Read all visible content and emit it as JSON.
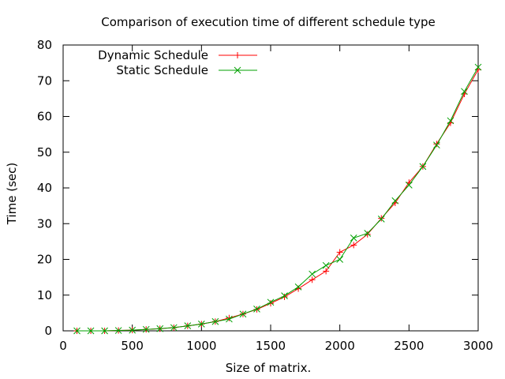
{
  "chart_data": {
    "type": "line",
    "title": "Comparison of execution time of different schedule type",
    "xlabel": "Size of matrix.",
    "ylabel": "Time (sec)",
    "xlim": [
      0,
      3000
    ],
    "ylim": [
      0,
      80
    ],
    "xticks": [
      0,
      500,
      1000,
      1500,
      2000,
      2500,
      3000
    ],
    "yticks": [
      0,
      10,
      20,
      30,
      40,
      50,
      60,
      70,
      80
    ],
    "grid": false,
    "legend_position": "top-left",
    "x": [
      100,
      200,
      300,
      400,
      500,
      600,
      700,
      800,
      900,
      1000,
      1100,
      1200,
      1300,
      1400,
      1500,
      1600,
      1700,
      1800,
      1900,
      2000,
      2100,
      2200,
      2300,
      2400,
      2500,
      2600,
      2700,
      2800,
      2900,
      3000
    ],
    "series": [
      {
        "name": "Dynamic Schedule",
        "color": "#ff0000",
        "marker": "plus",
        "values": [
          0.0,
          0.0,
          0.0,
          0.1,
          0.2,
          0.4,
          0.6,
          0.9,
          1.4,
          1.9,
          2.6,
          3.6,
          4.7,
          6.0,
          7.7,
          9.5,
          11.8,
          14.3,
          16.7,
          22.0,
          24.0,
          27.0,
          31.5,
          35.8,
          41.5,
          46.0,
          52.3,
          58.2,
          66.3,
          73.1
        ]
      },
      {
        "name": "Static Schedule",
        "color": "#00a000",
        "marker": "cross",
        "values": [
          0.0,
          0.0,
          0.0,
          0.1,
          0.2,
          0.4,
          0.6,
          0.9,
          1.4,
          1.9,
          2.6,
          3.3,
          4.7,
          6.1,
          8.0,
          9.8,
          12.3,
          15.9,
          18.3,
          20.0,
          26.0,
          27.3,
          31.3,
          36.4,
          40.8,
          46.0,
          52.0,
          58.8,
          67.0,
          73.8
        ]
      }
    ]
  }
}
